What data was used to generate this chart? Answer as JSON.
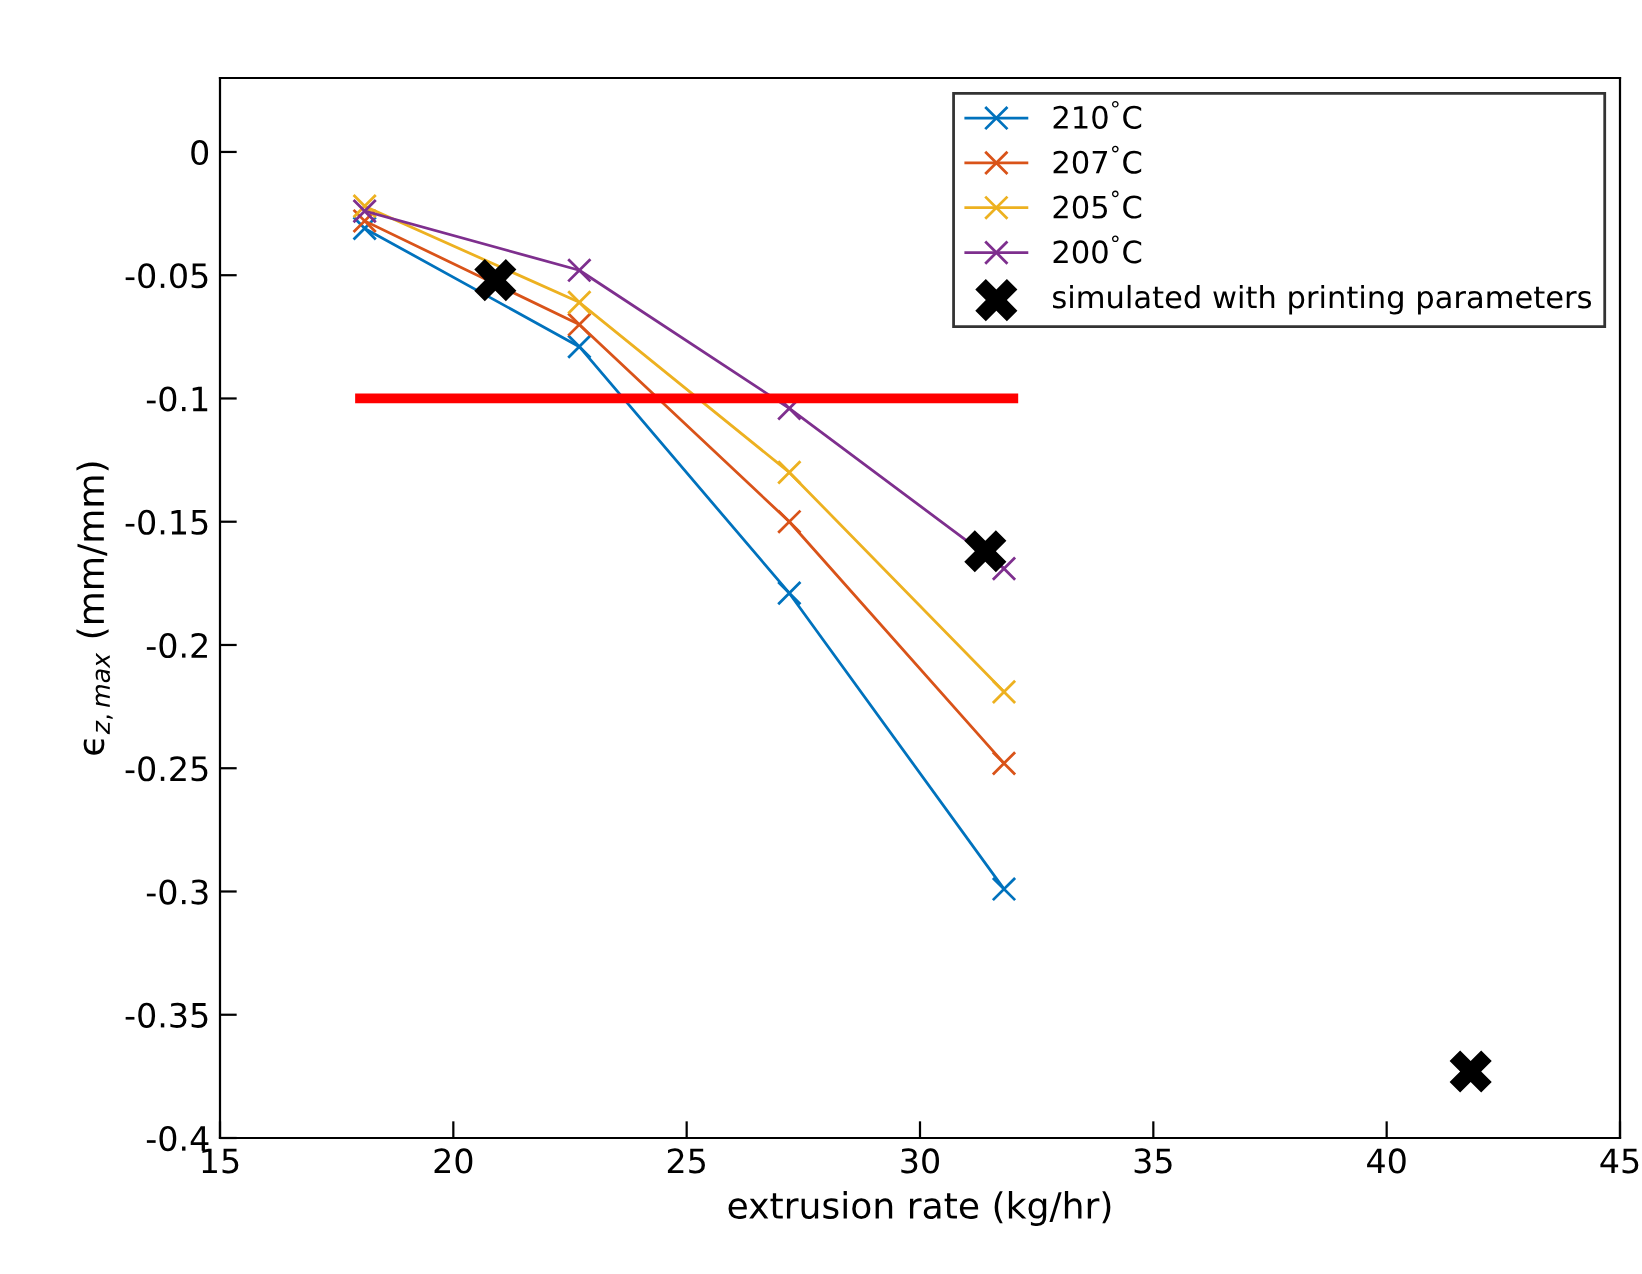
{
  "chart_data": {
    "type": "line",
    "xlabel": "extrusion rate (kg/hr)",
    "ylabel": "ϵ$_{z,max}$ (mm/mm)",
    "xlim": [
      15,
      45
    ],
    "xticks": [
      15,
      20,
      25,
      30,
      35,
      40,
      45
    ],
    "ylim": [
      -0.4,
      0.03
    ],
    "yticks": [
      {
        "value": -0.4,
        "label": "-0.4"
      },
      {
        "value": -0.35,
        "label": "-0.35"
      },
      {
        "value": -0.3,
        "label": "-0.3"
      },
      {
        "value": -0.25,
        "label": "-0.25"
      },
      {
        "value": -0.2,
        "label": "-0.2"
      },
      {
        "value": -0.15,
        "label": "-0.15"
      },
      {
        "value": -0.1,
        "label": "-0.1"
      },
      {
        "value": -0.05,
        "label": "-0.05"
      },
      0
    ],
    "grid": false,
    "legend": "top right",
    "marker": "cross",
    "line_style": "solid",
    "x": [
      18.1,
      22.7,
      27.2,
      31.8
    ],
    "series": [
      {
        "name": "210$^{°}$C",
        "color": "#0072bd",
        "values": [
          -0.031,
          -0.079,
          -0.179,
          -0.299
        ]
      },
      {
        "name": "207$^{°}$C",
        "color": "#d95319",
        "values": [
          -0.028,
          -0.07,
          -0.15,
          -0.248
        ]
      },
      {
        "name": "205$^{°}$C",
        "color": "#edb120",
        "values": [
          -0.022,
          -0.061,
          -0.13,
          -0.219
        ]
      },
      {
        "name": "200$^{°}$C",
        "color": "#7e2f8e",
        "values": [
          -0.024,
          -0.048,
          -0.104,
          -0.169
        ]
      },
      {
        "name": "simulated with printing parameters",
        "type": "scatter",
        "color": "#000000",
        "x": [
          20.9,
          31.4,
          41.8
        ],
        "values": [
          -0.052,
          -0.162,
          -0.373
        ]
      },
      {
        "type": "line",
        "color": "#ff0000",
        "marker": "none",
        "x": [
          18.0,
          32.0
        ],
        "values": [
          -0.1,
          -0.1
        ]
      }
    ]
  }
}
